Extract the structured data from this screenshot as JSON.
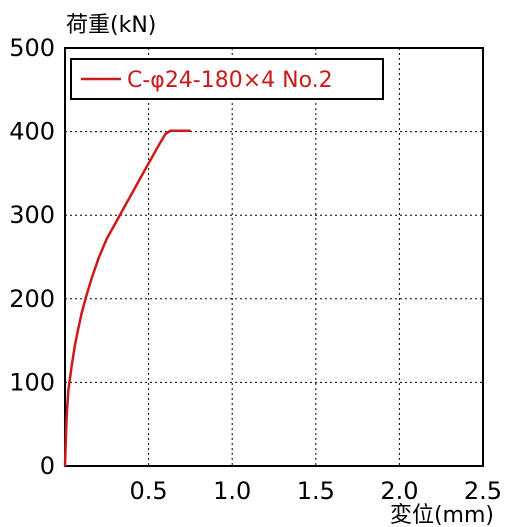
{
  "chart_data": {
    "type": "line",
    "title": "",
    "xlabel": "変位(mm)",
    "ylabel": "荷重(kN)",
    "xlim": [
      0,
      2.5
    ],
    "ylim": [
      0,
      500
    ],
    "x_ticks": [
      0.5,
      1.0,
      1.5,
      2.0,
      2.5
    ],
    "x_tick_labels": [
      "0.5",
      "1.0",
      "1.5",
      "2.0",
      "2.5"
    ],
    "y_ticks": [
      0,
      100,
      200,
      300,
      400,
      500
    ],
    "y_tick_labels": [
      "0",
      "100",
      "200",
      "300",
      "400",
      "500"
    ],
    "grid": true,
    "legend_position": "top-left",
    "series": [
      {
        "name": "C-φ24-180×4 No.2",
        "color": "#cc1a1a",
        "x": [
          0.0,
          0.005,
          0.01,
          0.02,
          0.04,
          0.06,
          0.08,
          0.1,
          0.13,
          0.16,
          0.2,
          0.25,
          0.3,
          0.35,
          0.4,
          0.45,
          0.5,
          0.55,
          0.6,
          0.63,
          0.65,
          0.7,
          0.75
        ],
        "y": [
          0,
          30,
          60,
          90,
          120,
          145,
          165,
          183,
          205,
          225,
          248,
          272,
          290,
          308,
          326,
          344,
          362,
          380,
          397,
          401,
          401,
          401,
          401
        ]
      }
    ]
  }
}
